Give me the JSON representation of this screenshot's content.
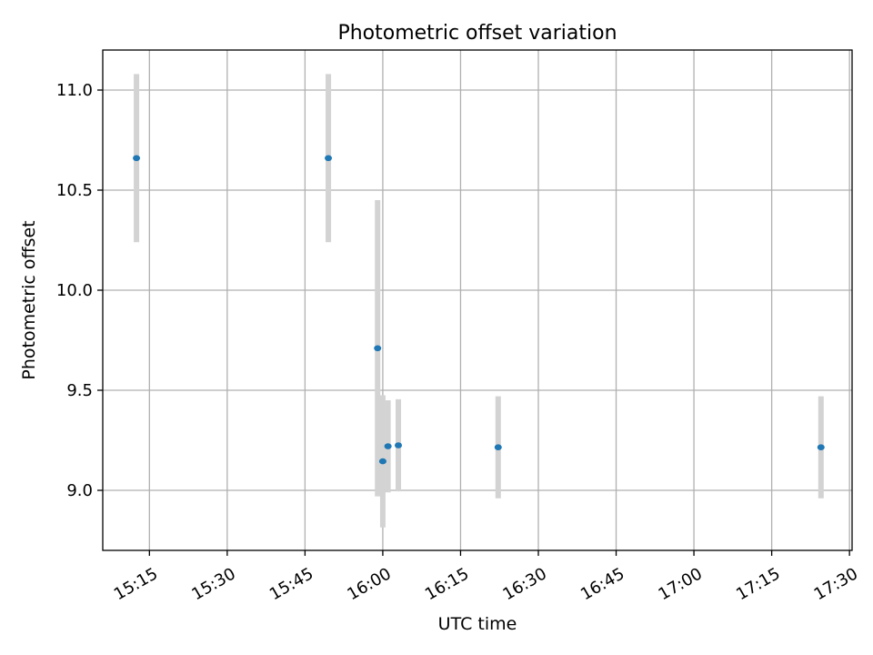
{
  "chart_data": {
    "type": "scatter",
    "title": "Photometric offset variation",
    "xlabel": "UTC time",
    "ylabel": "Photometric offset",
    "x_is_time": true,
    "xlim": [
      "15:06",
      "17:30:30"
    ],
    "ylim": [
      8.7,
      11.2
    ],
    "xticks": [
      "15:15",
      "15:30",
      "15:45",
      "16:00",
      "16:15",
      "16:30",
      "16:45",
      "17:00",
      "17:15",
      "17:30"
    ],
    "yticks": [
      9.0,
      9.5,
      10.0,
      10.5,
      11.0
    ],
    "ytick_labels": [
      "9.0",
      "9.5",
      "10.0",
      "10.5",
      "11.0"
    ],
    "grid": true,
    "series": [
      {
        "marker_color": "#1f77b4",
        "errorbar_color": "#d3d3d3",
        "points": [
          {
            "x": "15:12:30",
            "y": 10.66,
            "err": 0.42
          },
          {
            "x": "15:49:30",
            "y": 10.66,
            "err": 0.42
          },
          {
            "x": "15:59:00",
            "y": 9.71,
            "err": 0.74
          },
          {
            "x": "16:00:00",
            "y": 9.145,
            "err": 0.33
          },
          {
            "x": "16:01:00",
            "y": 9.22,
            "err": 0.23
          },
          {
            "x": "16:03:00",
            "y": 9.225,
            "err": 0.23
          },
          {
            "x": "16:22:15",
            "y": 9.215,
            "err": 0.255
          },
          {
            "x": "17:24:30",
            "y": 9.215,
            "err": 0.255
          }
        ]
      }
    ]
  }
}
